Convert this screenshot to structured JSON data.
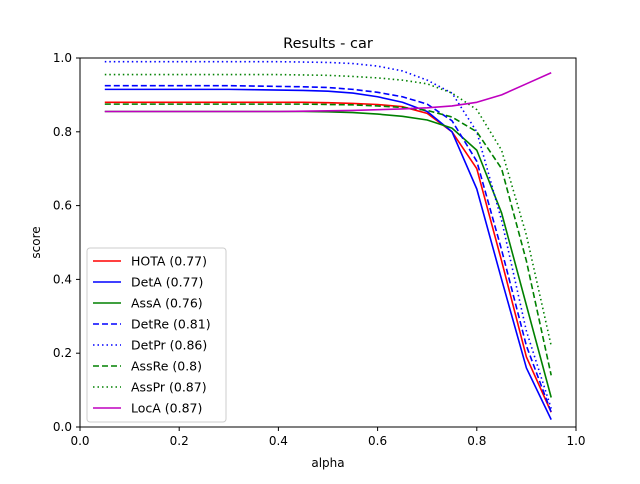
{
  "chart_data": {
    "type": "line",
    "title": "Results - car",
    "xlabel": "alpha",
    "ylabel": "score",
    "xlim": [
      0.0,
      1.0
    ],
    "ylim": [
      0.0,
      1.0
    ],
    "xticks": [
      "0.0",
      "0.2",
      "0.4",
      "0.6",
      "0.8",
      "1.0"
    ],
    "yticks": [
      "0.0",
      "0.2",
      "0.4",
      "0.6",
      "0.8",
      "1.0"
    ],
    "grid": false,
    "legend_position": "lower-left",
    "x": [
      0.05,
      0.1,
      0.15,
      0.2,
      0.25,
      0.3,
      0.35,
      0.4,
      0.45,
      0.5,
      0.55,
      0.6,
      0.65,
      0.7,
      0.75,
      0.8,
      0.85,
      0.9,
      0.95
    ],
    "series": [
      {
        "name": "HOTA (0.77)",
        "color": "#ff0000",
        "dash": "solid",
        "values": [
          0.88,
          0.88,
          0.88,
          0.88,
          0.88,
          0.88,
          0.88,
          0.88,
          0.88,
          0.879,
          0.877,
          0.874,
          0.868,
          0.85,
          0.8,
          0.7,
          0.45,
          0.19,
          0.04
        ]
      },
      {
        "name": "DetA (0.77)",
        "color": "#0000ff",
        "dash": "solid",
        "values": [
          0.915,
          0.915,
          0.915,
          0.915,
          0.915,
          0.915,
          0.914,
          0.913,
          0.912,
          0.91,
          0.905,
          0.895,
          0.88,
          0.855,
          0.8,
          0.645,
          0.4,
          0.16,
          0.02
        ]
      },
      {
        "name": "AssA (0.76)",
        "color": "#008000",
        "dash": "solid",
        "values": [
          0.855,
          0.855,
          0.855,
          0.855,
          0.855,
          0.855,
          0.855,
          0.855,
          0.855,
          0.854,
          0.852,
          0.848,
          0.842,
          0.832,
          0.81,
          0.75,
          0.58,
          0.33,
          0.08
        ]
      },
      {
        "name": "DetRe (0.81)",
        "color": "#0000ff",
        "dash": "dashed",
        "values": [
          0.925,
          0.925,
          0.925,
          0.925,
          0.925,
          0.925,
          0.924,
          0.923,
          0.922,
          0.92,
          0.915,
          0.907,
          0.895,
          0.875,
          0.83,
          0.72,
          0.48,
          0.22,
          0.04
        ]
      },
      {
        "name": "DetPr (0.86)",
        "color": "#0000ff",
        "dash": "dotted",
        "values": [
          0.99,
          0.99,
          0.99,
          0.99,
          0.99,
          0.99,
          0.99,
          0.99,
          0.989,
          0.988,
          0.985,
          0.978,
          0.965,
          0.94,
          0.905,
          0.8,
          0.56,
          0.26,
          0.05
        ]
      },
      {
        "name": "AssRe (0.8)",
        "color": "#008000",
        "dash": "dashed",
        "values": [
          0.875,
          0.875,
          0.875,
          0.875,
          0.875,
          0.875,
          0.875,
          0.875,
          0.875,
          0.874,
          0.873,
          0.87,
          0.866,
          0.858,
          0.84,
          0.8,
          0.7,
          0.45,
          0.14
        ]
      },
      {
        "name": "AssPr (0.87)",
        "color": "#008000",
        "dash": "dotted",
        "values": [
          0.955,
          0.955,
          0.955,
          0.955,
          0.955,
          0.955,
          0.955,
          0.955,
          0.954,
          0.953,
          0.95,
          0.946,
          0.94,
          0.93,
          0.905,
          0.86,
          0.75,
          0.52,
          0.22
        ]
      },
      {
        "name": "LocA (0.87)",
        "color": "#bf00bf",
        "dash": "solid",
        "values": [
          0.855,
          0.855,
          0.855,
          0.855,
          0.855,
          0.855,
          0.855,
          0.855,
          0.856,
          0.857,
          0.858,
          0.86,
          0.862,
          0.865,
          0.87,
          0.88,
          0.9,
          0.93,
          0.96
        ]
      }
    ]
  }
}
